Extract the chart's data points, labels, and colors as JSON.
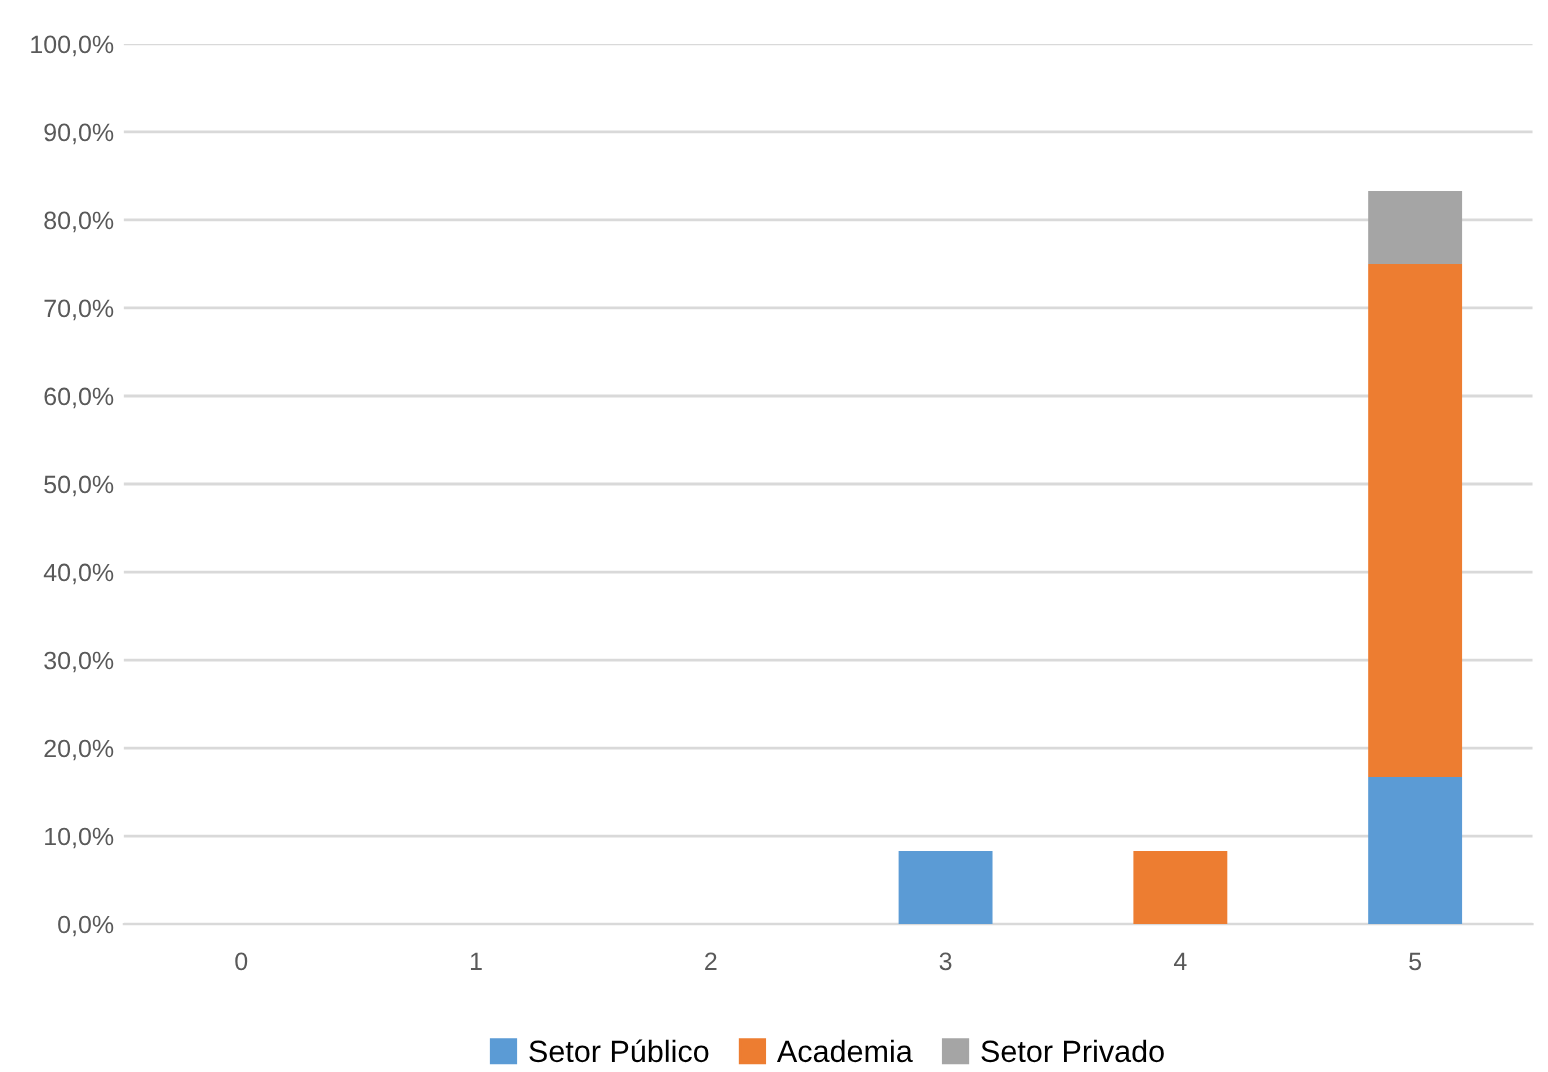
{
  "chart_data": {
    "type": "bar",
    "stacked": true,
    "categories": [
      "0",
      "1",
      "2",
      "3",
      "4",
      "5"
    ],
    "series": [
      {
        "name": "Setor Público",
        "color": "#5b9bd5",
        "values": [
          null,
          null,
          null,
          8.3,
          null,
          16.7
        ]
      },
      {
        "name": "Academia",
        "color": "#ed7d31",
        "values": [
          null,
          null,
          null,
          null,
          8.3,
          58.3
        ]
      },
      {
        "name": "Setor Privado",
        "color": "#a5a5a5",
        "values": [
          null,
          null,
          null,
          null,
          null,
          8.3
        ]
      }
    ],
    "ylim": [
      0,
      100
    ],
    "yticks": [
      {
        "value": 0,
        "label": "0,0%"
      },
      {
        "value": 10,
        "label": "10,0%"
      },
      {
        "value": 20,
        "label": "20,0%"
      },
      {
        "value": 30,
        "label": "30,0%"
      },
      {
        "value": 40,
        "label": "40,0%"
      },
      {
        "value": 50,
        "label": "50,0%"
      },
      {
        "value": 60,
        "label": "60,0%"
      },
      {
        "value": 70,
        "label": "70,0%"
      },
      {
        "value": 80,
        "label": "80,0%"
      },
      {
        "value": 90,
        "label": "90,0%"
      },
      {
        "value": 100,
        "label": "100,0%"
      }
    ],
    "grid": "y",
    "legend": "bottom"
  }
}
